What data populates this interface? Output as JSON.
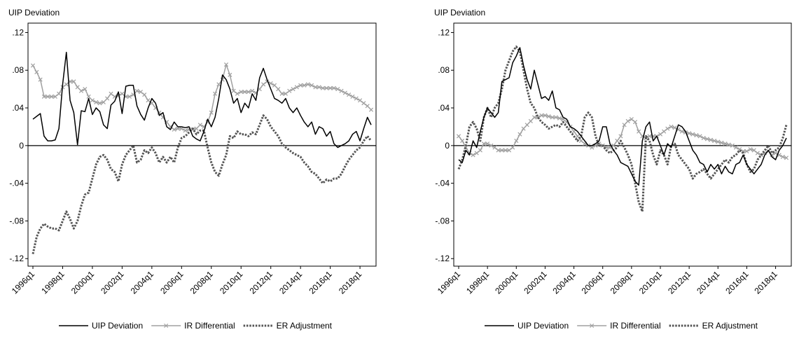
{
  "chart_data": [
    {
      "type": "line",
      "ylabel": "UIP Deviation",
      "legend": "bottom",
      "categories": [
        "1996q1",
        null,
        null,
        null,
        null,
        null,
        null,
        null,
        "1998q1",
        null,
        null,
        null,
        null,
        null,
        null,
        null,
        "2000q1",
        null,
        null,
        null,
        null,
        null,
        null,
        null,
        "2002q1",
        null,
        null,
        null,
        null,
        null,
        null,
        null,
        "2004q1",
        null,
        null,
        null,
        null,
        null,
        null,
        null,
        "2006q1",
        null,
        null,
        null,
        null,
        null,
        null,
        null,
        "2008q1",
        null,
        null,
        null,
        null,
        null,
        null,
        null,
        "2010q1",
        null,
        null,
        null,
        null,
        null,
        null,
        null,
        "2012q1",
        null,
        null,
        null,
        null,
        null,
        null,
        null,
        "2014q1",
        null,
        null,
        null,
        null,
        null,
        null,
        null,
        "2016q1",
        null,
        null,
        null,
        null,
        null,
        null,
        null,
        "2018q1",
        null,
        null,
        null
      ],
      "ylim": [
        -0.128,
        0.13
      ],
      "yticks": [
        {
          "value": -0.12,
          "label": "-.12"
        },
        {
          "value": -0.08,
          "label": "-.08"
        },
        {
          "value": -0.04,
          "label": "-.04"
        },
        0,
        {
          "value": 0.04,
          "label": ".04"
        },
        {
          "value": 0.08,
          "label": ".08"
        },
        {
          "value": 0.12,
          "label": ".12"
        }
      ],
      "series": [
        {
          "name": "UIP Deviation",
          "color": "#000000",
          "style": "solid",
          "marker": "none",
          "values": [
            0.028,
            0.031,
            0.034,
            0.01,
            0.005,
            0.005,
            0.006,
            0.018,
            0.065,
            0.099,
            0.048,
            0.035,
            0.001,
            0.037,
            0.036,
            0.05,
            0.033,
            0.04,
            0.036,
            0.022,
            0.018,
            0.043,
            0.047,
            0.057,
            0.034,
            0.063,
            0.064,
            0.064,
            0.042,
            0.033,
            0.027,
            0.04,
            0.05,
            0.045,
            0.032,
            0.035,
            0.02,
            0.017,
            0.025,
            0.02,
            0.02,
            0.019,
            0.02,
            0.01,
            0.007,
            0.005,
            0.015,
            0.028,
            0.02,
            0.03,
            0.05,
            0.075,
            0.07,
            0.06,
            0.045,
            0.05,
            0.035,
            0.045,
            0.04,
            0.055,
            0.048,
            0.072,
            0.082,
            0.07,
            0.06,
            0.05,
            0.048,
            0.045,
            0.05,
            0.04,
            0.035,
            0.04,
            0.032,
            0.025,
            0.02,
            0.025,
            0.012,
            0.02,
            0.018,
            0.01,
            0.015,
            0.002,
            -0.002,
            0.0,
            0.002,
            0.005,
            0.012,
            0.015,
            0.005,
            0.018,
            0.03,
            0.022
          ]
        },
        {
          "name": "IR Differential",
          "color": "#a0a0a0",
          "style": "solid",
          "marker": "x",
          "values": [
            0.085,
            0.078,
            0.07,
            0.052,
            0.052,
            0.052,
            0.052,
            0.055,
            0.062,
            0.065,
            0.068,
            0.068,
            0.062,
            0.058,
            0.06,
            0.052,
            0.048,
            0.046,
            0.045,
            0.046,
            0.05,
            0.055,
            0.052,
            0.053,
            0.055,
            0.052,
            0.052,
            0.054,
            0.058,
            0.057,
            0.054,
            0.048,
            0.045,
            0.04,
            0.035,
            0.03,
            0.025,
            0.02,
            0.017,
            0.018,
            0.018,
            0.016,
            0.017,
            0.017,
            0.018,
            0.022,
            0.02,
            0.025,
            0.035,
            0.055,
            0.065,
            0.07,
            0.086,
            0.075,
            0.058,
            0.055,
            0.057,
            0.057,
            0.057,
            0.058,
            0.056,
            0.06,
            0.065,
            0.068,
            0.066,
            0.064,
            0.06,
            0.055,
            0.055,
            0.058,
            0.06,
            0.062,
            0.064,
            0.064,
            0.065,
            0.064,
            0.062,
            0.062,
            0.061,
            0.061,
            0.061,
            0.061,
            0.06,
            0.058,
            0.056,
            0.054,
            0.052,
            0.05,
            0.048,
            0.045,
            0.042,
            0.038
          ]
        },
        {
          "name": "ER Adjustment",
          "color": "#555555",
          "style": "dotted",
          "marker": "none",
          "values": [
            -0.115,
            -0.097,
            -0.088,
            -0.083,
            -0.086,
            -0.088,
            -0.088,
            -0.09,
            -0.08,
            -0.07,
            -0.078,
            -0.088,
            -0.08,
            -0.064,
            -0.052,
            -0.05,
            -0.035,
            -0.02,
            -0.012,
            -0.01,
            -0.015,
            -0.025,
            -0.028,
            -0.038,
            -0.02,
            -0.01,
            -0.005,
            0.0,
            -0.018,
            -0.015,
            -0.005,
            -0.008,
            -0.002,
            -0.008,
            -0.018,
            -0.012,
            -0.018,
            -0.012,
            -0.018,
            -0.002,
            0.008,
            0.01,
            0.014,
            0.018,
            0.012,
            0.016,
            0.016,
            -0.002,
            -0.018,
            -0.028,
            -0.032,
            -0.02,
            -0.01,
            0.01,
            0.008,
            0.015,
            0.012,
            0.012,
            0.01,
            0.014,
            0.012,
            0.022,
            0.032,
            0.028,
            0.02,
            0.015,
            0.01,
            0.002,
            -0.002,
            -0.005,
            -0.008,
            -0.01,
            -0.012,
            -0.018,
            -0.022,
            -0.028,
            -0.03,
            -0.035,
            -0.04,
            -0.036,
            -0.038,
            -0.035,
            -0.035,
            -0.03,
            -0.022,
            -0.015,
            -0.01,
            -0.005,
            -0.002,
            0.005,
            0.01,
            0.005
          ]
        }
      ]
    },
    {
      "type": "line",
      "ylabel": "UIP Deviation",
      "legend": "bottom",
      "categories": [
        "1996q1",
        null,
        null,
        null,
        null,
        null,
        null,
        null,
        "1998q1",
        null,
        null,
        null,
        null,
        null,
        null,
        null,
        "2000q1",
        null,
        null,
        null,
        null,
        null,
        null,
        null,
        "2002q1",
        null,
        null,
        null,
        null,
        null,
        null,
        null,
        "2004q1",
        null,
        null,
        null,
        null,
        null,
        null,
        null,
        "2006q1",
        null,
        null,
        null,
        null,
        null,
        null,
        null,
        "2008q1",
        null,
        null,
        null,
        null,
        null,
        null,
        null,
        "2010q1",
        null,
        null,
        null,
        null,
        null,
        null,
        null,
        "2012q1",
        null,
        null,
        null,
        null,
        null,
        null,
        null,
        "2014q1",
        null,
        null,
        null,
        null,
        null,
        null,
        null,
        "2016q1",
        null,
        null,
        null,
        null,
        null,
        null,
        null,
        "2018q1",
        null,
        null,
        null
      ],
      "ylim": [
        -0.128,
        0.13
      ],
      "yticks": [
        {
          "value": -0.12,
          "label": "-.12"
        },
        {
          "value": -0.08,
          "label": "-.08"
        },
        {
          "value": -0.04,
          "label": "-.04"
        },
        0,
        {
          "value": 0.04,
          "label": ".04"
        },
        {
          "value": 0.08,
          "label": ".08"
        },
        {
          "value": 0.12,
          "label": ".12"
        }
      ],
      "series": [
        {
          "name": "UIP Deviation",
          "color": "#000000",
          "style": "solid",
          "marker": "none",
          "values": [
            -0.015,
            -0.018,
            -0.005,
            -0.01,
            0.005,
            -0.002,
            0.015,
            0.03,
            0.04,
            0.035,
            0.03,
            0.035,
            0.068,
            0.07,
            0.072,
            0.088,
            0.095,
            0.104,
            0.085,
            0.07,
            0.06,
            0.08,
            0.065,
            0.05,
            0.052,
            0.048,
            0.058,
            0.04,
            0.038,
            0.03,
            0.028,
            0.02,
            0.018,
            0.015,
            0.01,
            0.005,
            0.0,
            0.0,
            0.002,
            0.005,
            0.02,
            0.02,
            0.002,
            -0.005,
            -0.01,
            -0.018,
            -0.02,
            -0.022,
            -0.03,
            -0.038,
            -0.042,
            0.005,
            0.02,
            0.025,
            0.005,
            0.01,
            0.0,
            -0.01,
            0.002,
            -0.002,
            0.01,
            0.022,
            0.02,
            0.015,
            0.005,
            -0.005,
            -0.01,
            -0.018,
            -0.02,
            -0.028,
            -0.02,
            -0.025,
            -0.02,
            -0.03,
            -0.022,
            -0.028,
            -0.03,
            -0.02,
            -0.018,
            -0.01,
            -0.02,
            -0.025,
            -0.03,
            -0.025,
            -0.02,
            -0.01,
            -0.005,
            -0.012,
            -0.015,
            -0.005,
            0.0,
            0.008
          ]
        },
        {
          "name": "IR Differential",
          "color": "#a0a0a0",
          "style": "solid",
          "marker": "x",
          "values": [
            0.01,
            0.005,
            -0.002,
            -0.008,
            -0.01,
            -0.008,
            -0.005,
            0.002,
            0.002,
            0.0,
            -0.002,
            -0.005,
            -0.005,
            -0.005,
            -0.005,
            -0.002,
            0.005,
            0.012,
            0.018,
            0.022,
            0.026,
            0.03,
            0.03,
            0.032,
            0.032,
            0.031,
            0.03,
            0.03,
            0.029,
            0.028,
            0.025,
            0.02,
            0.015,
            0.01,
            0.005,
            0.002,
            0.0,
            -0.002,
            0.0,
            0.002,
            0.0,
            -0.002,
            -0.002,
            0.0,
            0.005,
            0.01,
            0.022,
            0.026,
            0.028,
            0.025,
            0.015,
            0.01,
            0.008,
            0.01,
            0.01,
            0.01,
            0.012,
            0.015,
            0.018,
            0.02,
            0.019,
            0.017,
            0.015,
            0.014,
            0.013,
            0.012,
            0.011,
            0.01,
            0.008,
            0.007,
            0.006,
            0.005,
            0.004,
            0.003,
            0.002,
            0.001,
            0.0,
            -0.002,
            -0.004,
            -0.006,
            -0.006,
            -0.004,
            -0.005,
            -0.008,
            -0.01,
            -0.008,
            -0.006,
            -0.01,
            -0.008,
            -0.01,
            -0.012,
            -0.013
          ]
        },
        {
          "name": "ER Adjustment",
          "color": "#555555",
          "style": "dotted",
          "marker": "none",
          "values": [
            -0.025,
            -0.015,
            0.0,
            0.02,
            0.025,
            0.018,
            0.005,
            0.03,
            0.04,
            0.03,
            0.04,
            0.045,
            0.06,
            0.08,
            0.09,
            0.1,
            0.105,
            0.1,
            0.08,
            0.06,
            0.045,
            0.04,
            0.03,
            0.025,
            0.022,
            0.018,
            0.02,
            0.022,
            0.02,
            0.025,
            0.02,
            0.015,
            0.01,
            0.005,
            0.01,
            0.03,
            0.035,
            0.03,
            0.01,
            0.0,
            0.0,
            -0.005,
            -0.008,
            -0.005,
            -0.002,
            0.005,
            -0.002,
            -0.01,
            -0.02,
            -0.04,
            -0.06,
            -0.07,
            0.01,
            0.005,
            -0.01,
            -0.02,
            -0.005,
            -0.01,
            -0.02,
            0.0,
            0.002,
            -0.01,
            -0.015,
            -0.02,
            -0.025,
            -0.035,
            -0.03,
            -0.028,
            -0.025,
            -0.03,
            -0.035,
            -0.03,
            -0.025,
            -0.02,
            -0.015,
            -0.018,
            -0.012,
            -0.01,
            -0.005,
            -0.008,
            -0.02,
            -0.028,
            -0.025,
            -0.015,
            -0.01,
            -0.005,
            0.0,
            -0.008,
            -0.005,
            -0.002,
            0.008,
            0.022
          ]
        }
      ]
    }
  ]
}
